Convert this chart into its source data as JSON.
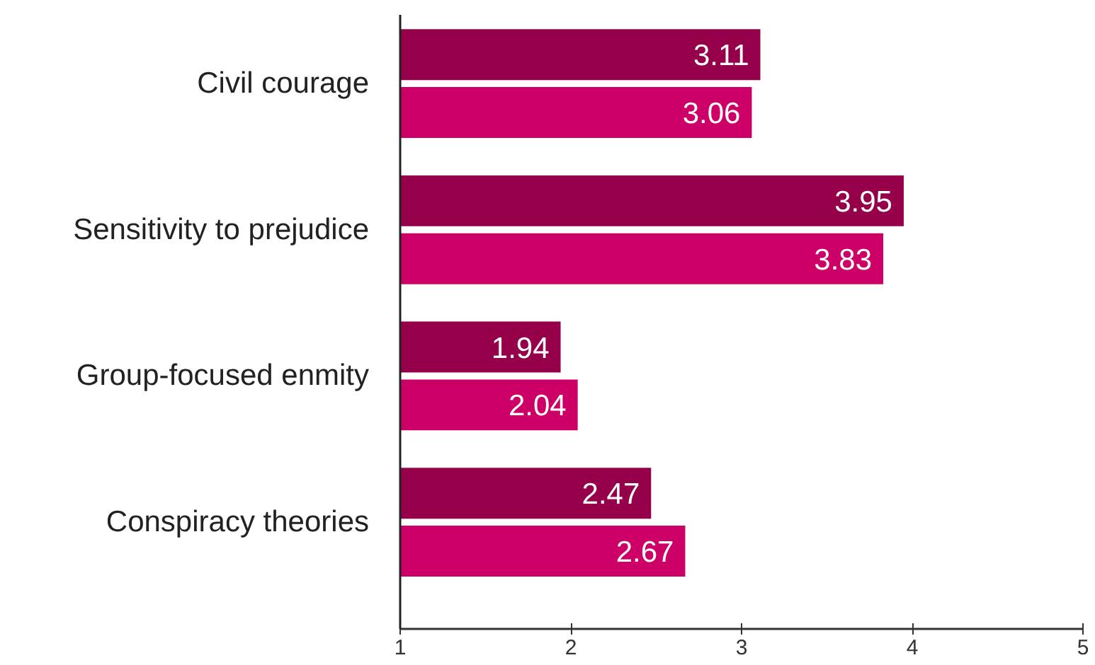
{
  "chart_data": {
    "type": "bar",
    "orientation": "horizontal",
    "categories": [
      "Civil courage",
      "Sensitivity to prejudice",
      "Group-focused enmity",
      "Conspiracy theories"
    ],
    "series": [
      {
        "color": "#96004b",
        "values": [
          3.11,
          3.95,
          1.94,
          2.47
        ]
      },
      {
        "color": "#cc0066",
        "values": [
          3.06,
          3.83,
          2.04,
          2.67
        ]
      }
    ],
    "xlim": [
      1,
      5
    ],
    "xticks": [
      1,
      2,
      3,
      4,
      5
    ],
    "data_labels": true
  }
}
